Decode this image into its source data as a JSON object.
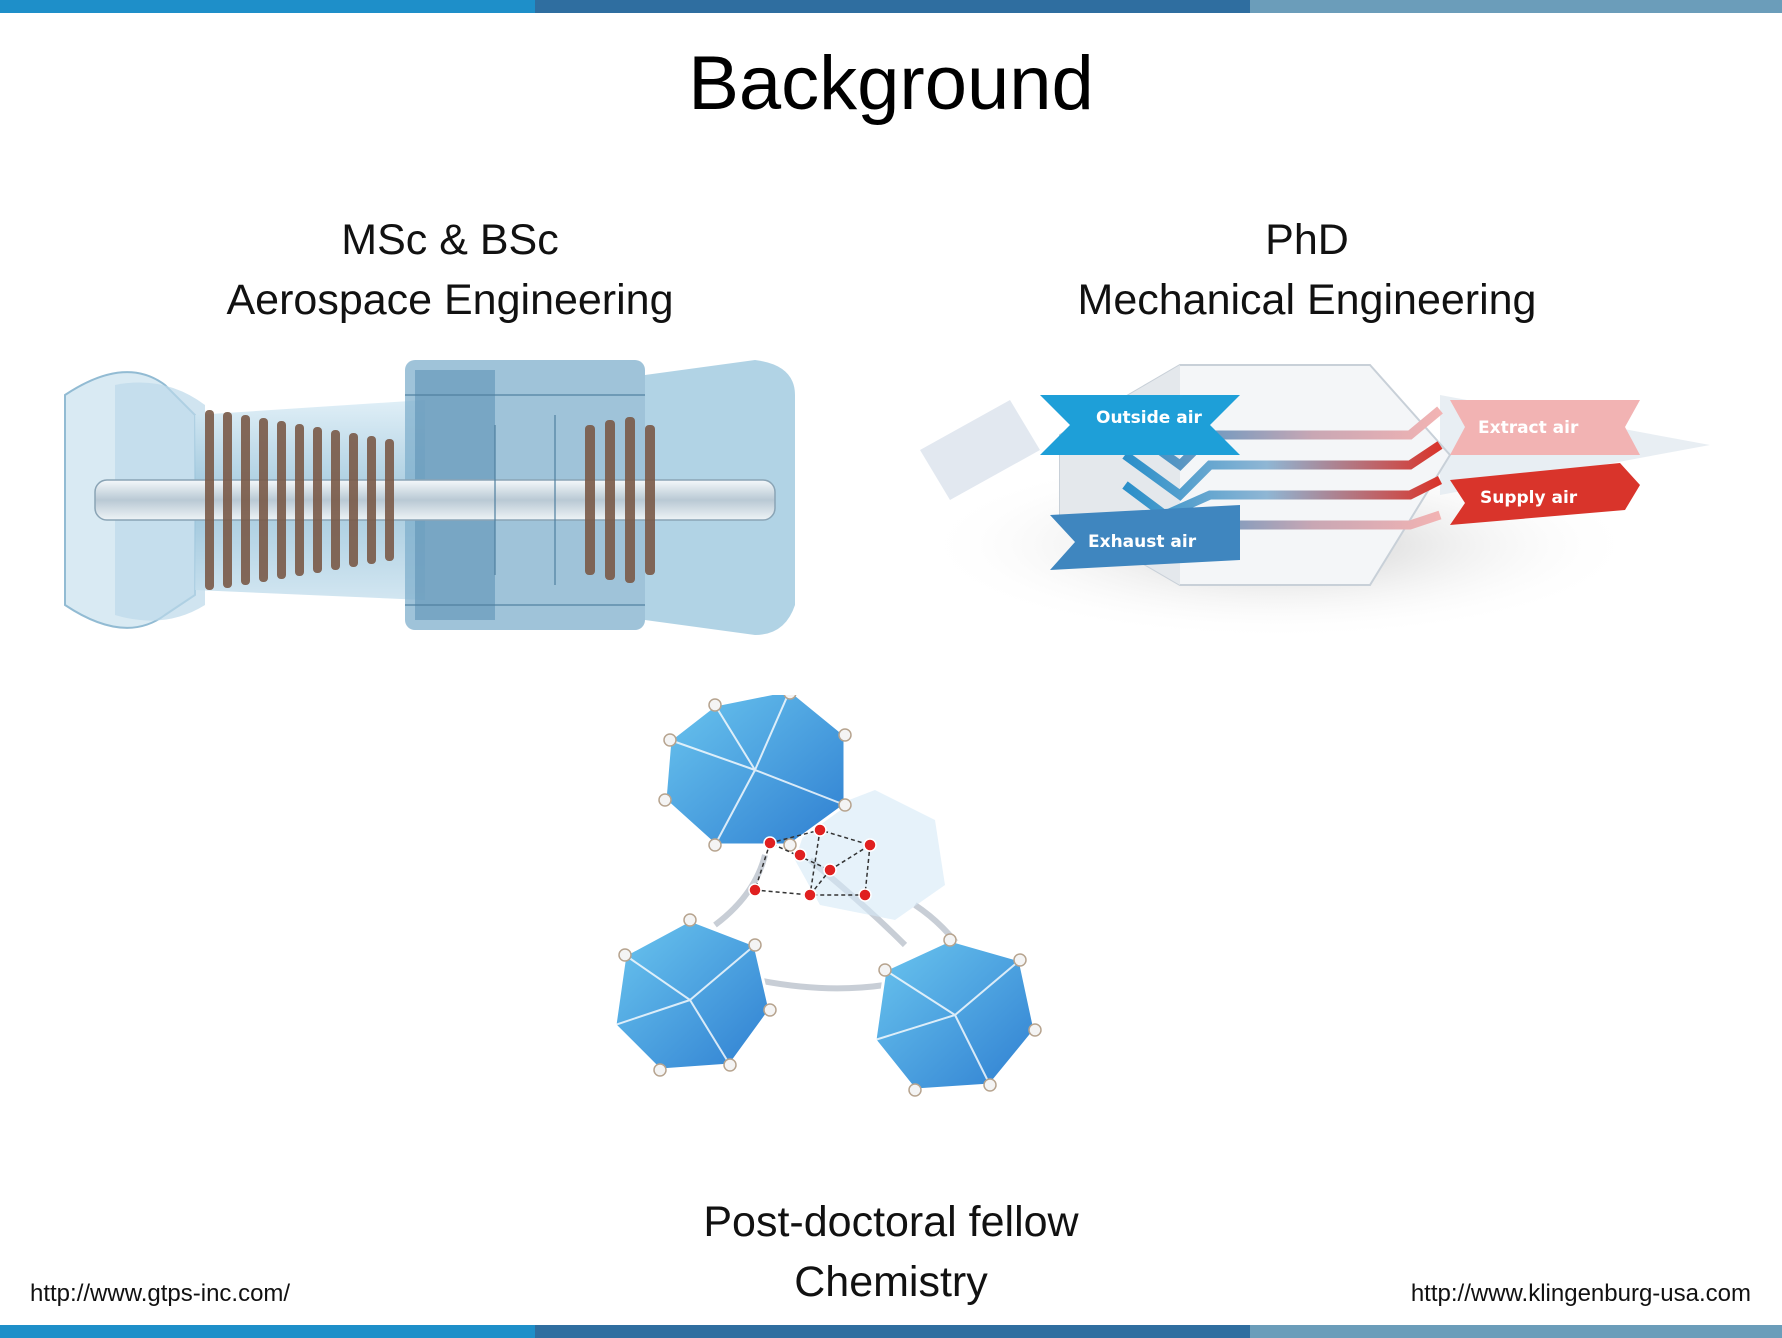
{
  "slide": {
    "title": "Background",
    "left_caption": {
      "line1": "MSc & BSc",
      "line2": "Aerospace Engineering"
    },
    "right_caption": {
      "line1": "PhD",
      "line2": "Mechanical Engineering"
    },
    "bottom_caption": {
      "line1": "Post-doctoral fellow",
      "line2": "Chemistry"
    },
    "source_left": "http://www.gtps-inc.com/",
    "source_right": "http://www.klingenburg-usa.com"
  },
  "heat_exchanger_labels": {
    "outside_air": "Outside air",
    "exhaust_air": "Exhaust air",
    "extract_air": "Extract air",
    "supply_air": "Supply air"
  },
  "colors": {
    "bar_light_blue": "#1e8fc9",
    "bar_mid_blue": "#2f6ea0",
    "bar_grey_blue": "#6b9dba",
    "turbine_blue": "#9cc6dc",
    "rotor_brown": "#7a5a48",
    "outside_air_blue": "#1e9fd8",
    "exhaust_air_blue": "#3f86bf",
    "supply_air_red": "#d9342b",
    "extract_air_pink": "#f2b3b3",
    "mof_cage_blue": "#4a90e2",
    "mof_oxygen_red": "#e02020"
  },
  "icons": {
    "turbine": "gas-turbine-image",
    "heat_exchanger": "heat-exchanger-image",
    "mof": "metal-organic-framework-image"
  }
}
